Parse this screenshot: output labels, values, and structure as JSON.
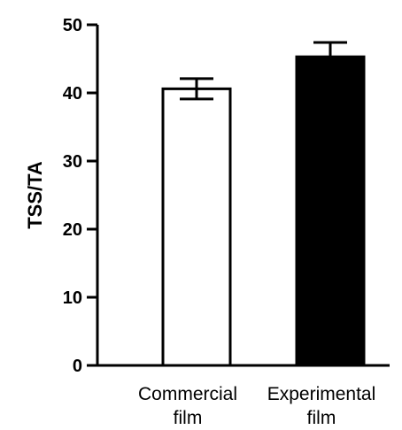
{
  "chart_data": {
    "type": "bar",
    "ylabel": "TSS/TA",
    "xlabel": "",
    "ylim": [
      0,
      50
    ],
    "yticks": [
      0,
      10,
      20,
      30,
      40,
      50
    ],
    "grid": false,
    "categories": [
      {
        "line1": "Commercial",
        "line2": "film"
      },
      {
        "line1": "Experimental",
        "line2": "film"
      }
    ],
    "values": [
      40.6,
      45.3
    ],
    "error": [
      1.5,
      2.1
    ],
    "colors": [
      "#ffffff",
      "#000000"
    ],
    "edge_color": "#000000"
  }
}
